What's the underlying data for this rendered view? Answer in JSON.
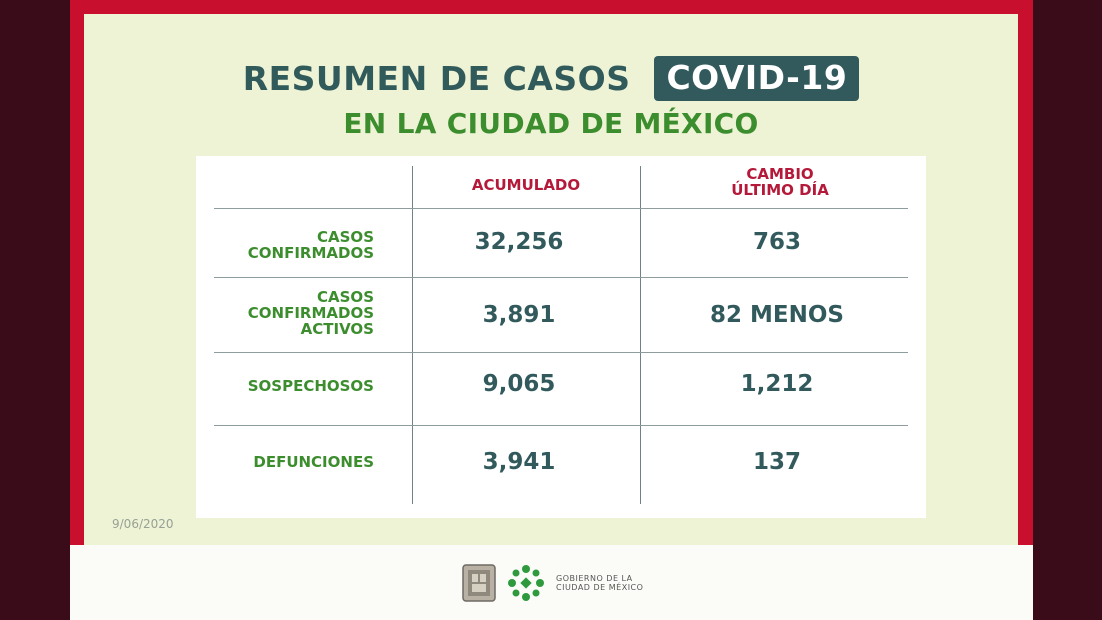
{
  "title": "RESUMEN DE CASOS",
  "badge": "COVID-19",
  "subtitle": "EN LA CIUDAD DE MÉXICO",
  "table": {
    "headers": [
      "ACUMULADO",
      "CAMBIO\nÚLTIMO DÍA"
    ],
    "rows": [
      {
        "label": "CASOS\nCONFIRMADOS",
        "acumulado": "32,256",
        "cambio": "763"
      },
      {
        "label": "CASOS\nCONFIRMADOS\nACTIVOS",
        "acumulado": "3,891",
        "cambio": "82 MENOS"
      },
      {
        "label": "SOSPECHOSOS",
        "acumulado": "9,065",
        "cambio": "1,212"
      },
      {
        "label": "DEFUNCIONES",
        "acumulado": "3,941",
        "cambio": "137"
      }
    ]
  },
  "date": "9/06/2020",
  "footer": {
    "gov_text_line1": "GOBIERNO DE LA",
    "gov_text_line2": "CIUDAD DE MÉXICO"
  },
  "colors": {
    "frame": "#c8102e",
    "panel": "#eef3d6",
    "teal": "#325a5c",
    "green": "#3c8d2e",
    "header_red": "#b5193a"
  }
}
